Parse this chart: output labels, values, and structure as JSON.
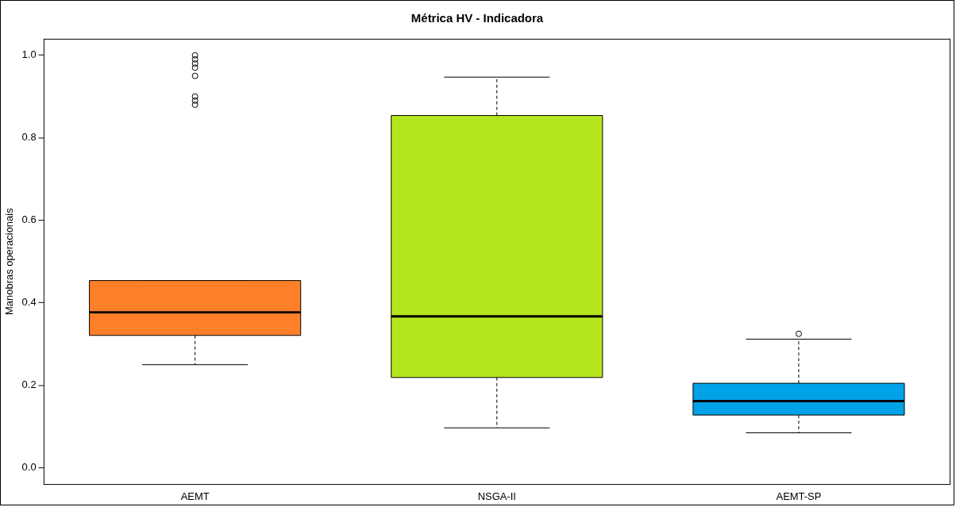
{
  "chart_data": {
    "type": "box",
    "title": "Métrica HV - Indicadora",
    "ylabel": "Manobras operacionais",
    "categories": [
      "AEMT",
      "NSGA-II",
      "AEMT-SP"
    ],
    "colors": [
      "#fd7f28",
      "#b5e61d",
      "#00a2e8"
    ],
    "boxes": [
      {
        "low": 0.25,
        "q1": 0.321,
        "median": 0.377,
        "q3": 0.454,
        "high": 0.454,
        "outliers": [
          1.0,
          0.99,
          0.98,
          0.97,
          0.95,
          0.9,
          0.89,
          0.88
        ]
      },
      {
        "low": 0.097,
        "q1": 0.219,
        "median": 0.367,
        "q3": 0.854,
        "high": 0.947
      },
      {
        "low": 0.085,
        "q1": 0.128,
        "median": 0.162,
        "q3": 0.205,
        "high": 0.312,
        "outliers": [
          0.325
        ]
      }
    ],
    "ylim": [
      -0.04,
      1.04
    ],
    "yticks": [
      {
        "value": 0,
        "label": "0.0"
      },
      0.2,
      0.4,
      0.6,
      0.8,
      {
        "value": 1,
        "label": "1.0"
      }
    ],
    "grid": false,
    "legend": false,
    "marker": "circle"
  }
}
